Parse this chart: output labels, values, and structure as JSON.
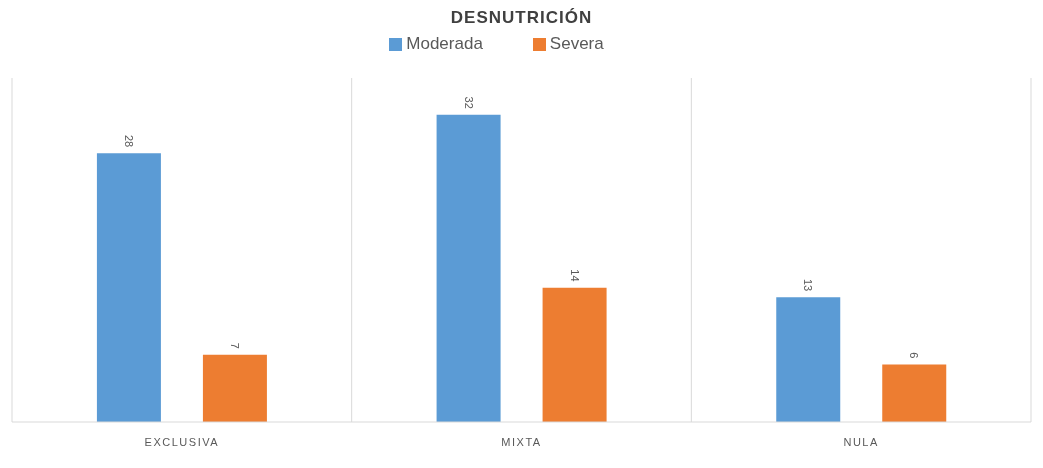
{
  "chart_data": {
    "type": "bar",
    "title": "DESNUTRICIÓN",
    "categories": [
      "EXCLUSIVA",
      "MIXTA",
      "NULA"
    ],
    "series": [
      {
        "name": "Moderada",
        "color": "#5b9bd5",
        "values": [
          28,
          32,
          13
        ]
      },
      {
        "name": "Severa",
        "color": "#ed7d31",
        "values": [
          7,
          14,
          6
        ]
      }
    ],
    "data_labels": true,
    "grid": "x",
    "legend": "top"
  }
}
